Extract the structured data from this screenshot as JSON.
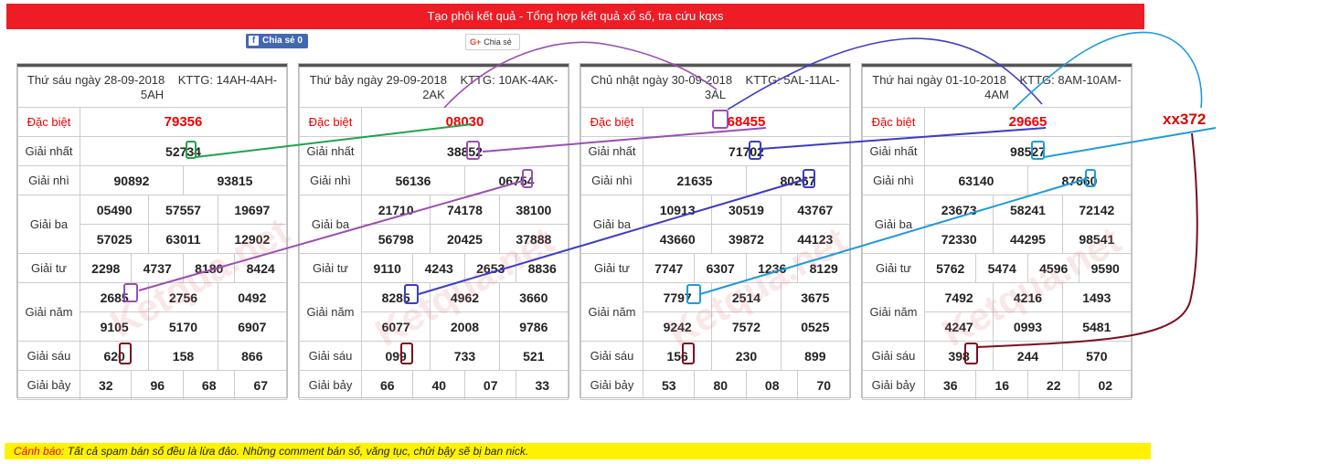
{
  "header": {
    "title": "Tạo phôi kết quả - Tổng hợp kết quả xổ số, tra cứu kqxs"
  },
  "share": {
    "facebook_label": "Chia sẻ 0",
    "facebook_icon": "f",
    "google_label": "Chia sẻ",
    "google_icon": "G+"
  },
  "watermark_text": "Ketqua.net",
  "labels": {
    "db": "Đặc biệt",
    "g1": "Giải nhất",
    "g2": "Giải nhì",
    "g3": "Giải ba",
    "g4": "Giải tư",
    "g5": "Giải năm",
    "g6": "Giải sáu",
    "g7": "Giải bảy"
  },
  "days": [
    {
      "date": "Thứ sáu ngày 28-09-2018",
      "kttg": "KTTG: 14AH-4AH-5AH",
      "db": "79356",
      "g1": "52734",
      "g2": [
        "90892",
        "93815"
      ],
      "g3": [
        "05490",
        "57557",
        "19697",
        "57025",
        "63011",
        "12902"
      ],
      "g4": [
        "2298",
        "4737",
        "8180",
        "8424"
      ],
      "g5": [
        "2685",
        "2756",
        "0492",
        "9105",
        "5170",
        "6907"
      ],
      "g6": [
        "620",
        "158",
        "866"
      ],
      "g7": [
        "32",
        "96",
        "68",
        "67"
      ]
    },
    {
      "date": "Thứ bảy ngày 29-09-2018",
      "kttg": "KTTG: 10AK-4AK-2AK",
      "db": "08030",
      "g1": "38852",
      "g2": [
        "56136",
        "06754"
      ],
      "g3": [
        "21710",
        "74178",
        "38100",
        "56798",
        "20425",
        "37888"
      ],
      "g4": [
        "9110",
        "4243",
        "2653",
        "8836"
      ],
      "g5": [
        "8285",
        "4962",
        "3660",
        "6077",
        "2008",
        "9786"
      ],
      "g6": [
        "099",
        "733",
        "521"
      ],
      "g7": [
        "66",
        "40",
        "07",
        "33"
      ]
    },
    {
      "date": "Chủ nhật ngày 30-09-2018",
      "kttg": "KTTG: 5AL-11AL-3AL",
      "db": "68455",
      "g1": "71702",
      "g2": [
        "21635",
        "80267"
      ],
      "g3": [
        "10913",
        "30519",
        "43767",
        "43660",
        "39872",
        "44123"
      ],
      "g4": [
        "7747",
        "6307",
        "1236",
        "8129"
      ],
      "g5": [
        "7797",
        "2514",
        "3675",
        "9242",
        "7572",
        "0525"
      ],
      "g6": [
        "156",
        "230",
        "899"
      ],
      "g7": [
        "53",
        "80",
        "08",
        "70"
      ]
    },
    {
      "date": "Thứ hai ngày 01-10-2018",
      "kttg": "KTTG: 8AM-10AM-4AM",
      "db": "29665",
      "g1": "98527",
      "g2": [
        "63140",
        "87660"
      ],
      "g3": [
        "23673",
        "58241",
        "72142",
        "72330",
        "44295",
        "98541"
      ],
      "g4": [
        "5762",
        "5474",
        "4596",
        "9590"
      ],
      "g5": [
        "7492",
        "4216",
        "1493",
        "4247",
        "0993",
        "5481"
      ],
      "g6": [
        "398",
        "244",
        "570"
      ],
      "g7": [
        "36",
        "16",
        "22",
        "02"
      ]
    }
  ],
  "annotation": {
    "label": "xx372",
    "colors": [
      "#1fa34a",
      "#9b4db3",
      "#3c3cc8",
      "#1e9bd7",
      "#7a0f1e"
    ]
  },
  "warning": {
    "label": "Cảnh báo:",
    "text": "Tất cả spam bán số đều là lừa đảo. Những comment bán số, văng tục, chửi bậy sẽ bị ban nick."
  }
}
